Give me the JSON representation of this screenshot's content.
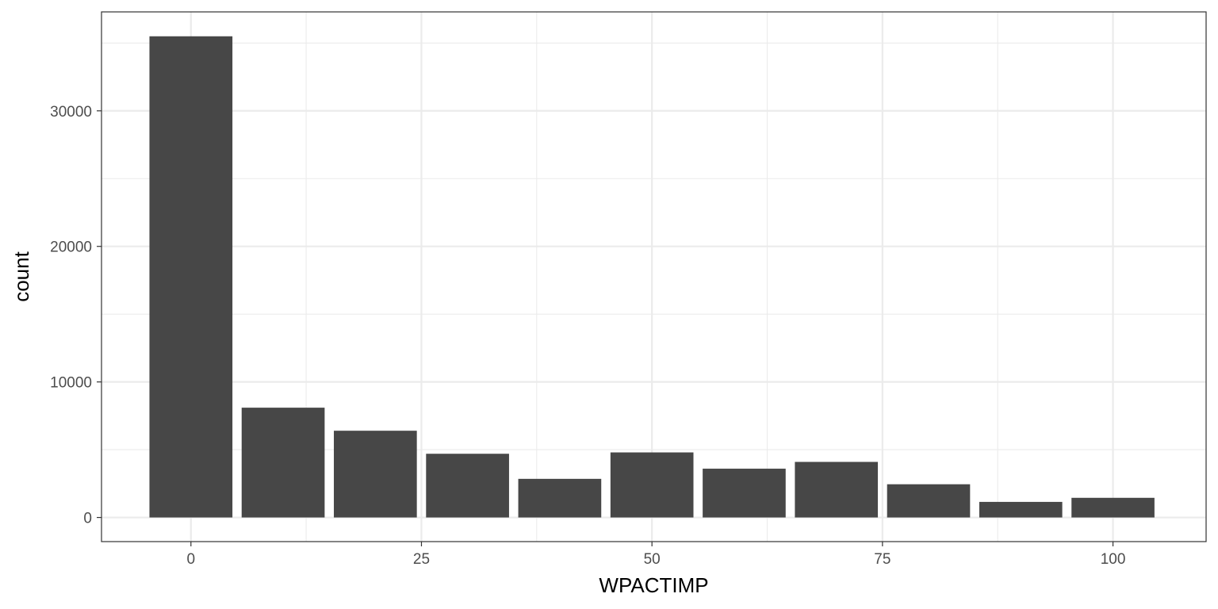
{
  "chart_data": {
    "type": "bar",
    "xlabel": "WPACTIMP",
    "ylabel": "count",
    "x": [
      0,
      10,
      20,
      30,
      40,
      50,
      60,
      70,
      80,
      90,
      100
    ],
    "values": [
      35500,
      8100,
      6400,
      4700,
      2850,
      4800,
      3600,
      4100,
      2450,
      1150,
      1450
    ],
    "xlim": [
      -9.7,
      110.1
    ],
    "ylim": [
      -1780,
      37300
    ],
    "xticks": [
      0,
      25,
      50,
      75,
      100
    ],
    "yticks": [
      0,
      10000,
      20000,
      30000
    ],
    "grid": true,
    "bar_color": "#474747",
    "panel_border_color": "#333333",
    "grid_color": "#ebebeb"
  }
}
